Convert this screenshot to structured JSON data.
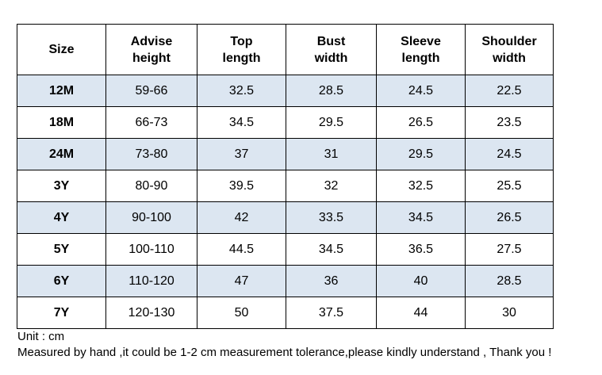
{
  "table": {
    "headers": [
      {
        "line1": "Size",
        "line2": ""
      },
      {
        "line1": "Advise",
        "line2": "height"
      },
      {
        "line1": "Top",
        "line2": "length"
      },
      {
        "line1": "Bust",
        "line2": "width"
      },
      {
        "line1": "Sleeve",
        "line2": "length"
      },
      {
        "line1": "Shoulder",
        "line2": "width"
      }
    ],
    "rows": [
      [
        "12M",
        "59-66",
        "32.5",
        "28.5",
        "24.5",
        "22.5"
      ],
      [
        "18M",
        "66-73",
        "34.5",
        "29.5",
        "26.5",
        "23.5"
      ],
      [
        "24M",
        "73-80",
        "37",
        "31",
        "29.5",
        "24.5"
      ],
      [
        "3Y",
        "80-90",
        "39.5",
        "32",
        "32.5",
        "25.5"
      ],
      [
        "4Y",
        "90-100",
        "42",
        "33.5",
        "34.5",
        "26.5"
      ],
      [
        "5Y",
        "100-110",
        "44.5",
        "34.5",
        "36.5",
        "27.5"
      ],
      [
        "6Y",
        "110-120",
        "47",
        "36",
        "40",
        "28.5"
      ],
      [
        "7Y",
        "120-130",
        "50",
        "37.5",
        "44",
        "30"
      ]
    ],
    "shaded_row_color": "#dce6f1"
  },
  "notes": {
    "unit": "Unit : cm",
    "tolerance": "Measured by hand ,it could be 1-2 cm measurement tolerance,please kindly understand , Thank you !"
  }
}
